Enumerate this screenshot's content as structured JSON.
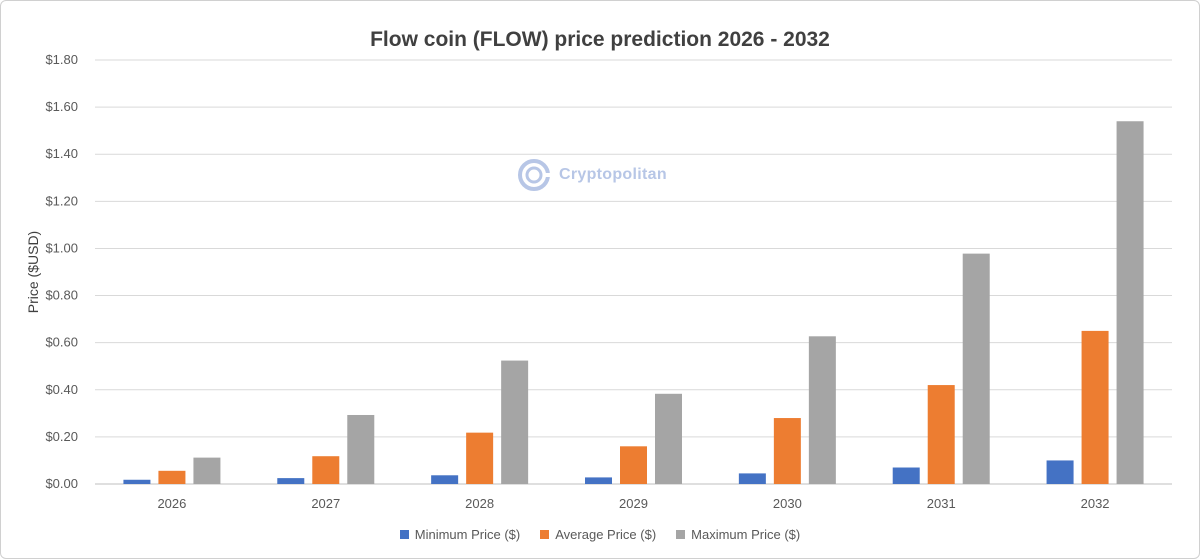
{
  "chart_data": {
    "type": "bar",
    "title": "Flow coin (FLOW) price prediction 2026 - 2032",
    "xlabel": "",
    "ylabel": "Price ($USD)",
    "ylim": [
      0,
      1.8
    ],
    "yticks": [
      "$0.00",
      "$0.20",
      "$0.40",
      "$0.60",
      "$0.80",
      "$1.00",
      "$1.20",
      "$1.40",
      "$1.60",
      "$1.80"
    ],
    "ytick_values": [
      0,
      0.2,
      0.4,
      0.6,
      0.8,
      1.0,
      1.2,
      1.4,
      1.6,
      1.8
    ],
    "grid": true,
    "legend_position": "bottom",
    "categories": [
      "2026",
      "2027",
      "2028",
      "2029",
      "2030",
      "2031",
      "2032"
    ],
    "series": [
      {
        "name": "Minimum Price ($)",
        "color": "#4472c4",
        "values": [
          0.018,
          0.025,
          0.037,
          0.028,
          0.045,
          0.07,
          0.1
        ]
      },
      {
        "name": "Average Price ($)",
        "color": "#ed7d31",
        "values": [
          0.056,
          0.118,
          0.218,
          0.16,
          0.28,
          0.42,
          0.65
        ]
      },
      {
        "name": "Maximum Price ($)",
        "color": "#a5a5a5",
        "values": [
          0.112,
          0.293,
          0.524,
          0.383,
          0.627,
          0.978,
          1.54
        ]
      }
    ]
  },
  "watermark": {
    "text": "Cryptopolitan",
    "icon": "cryptopolitan-logo-icon"
  }
}
